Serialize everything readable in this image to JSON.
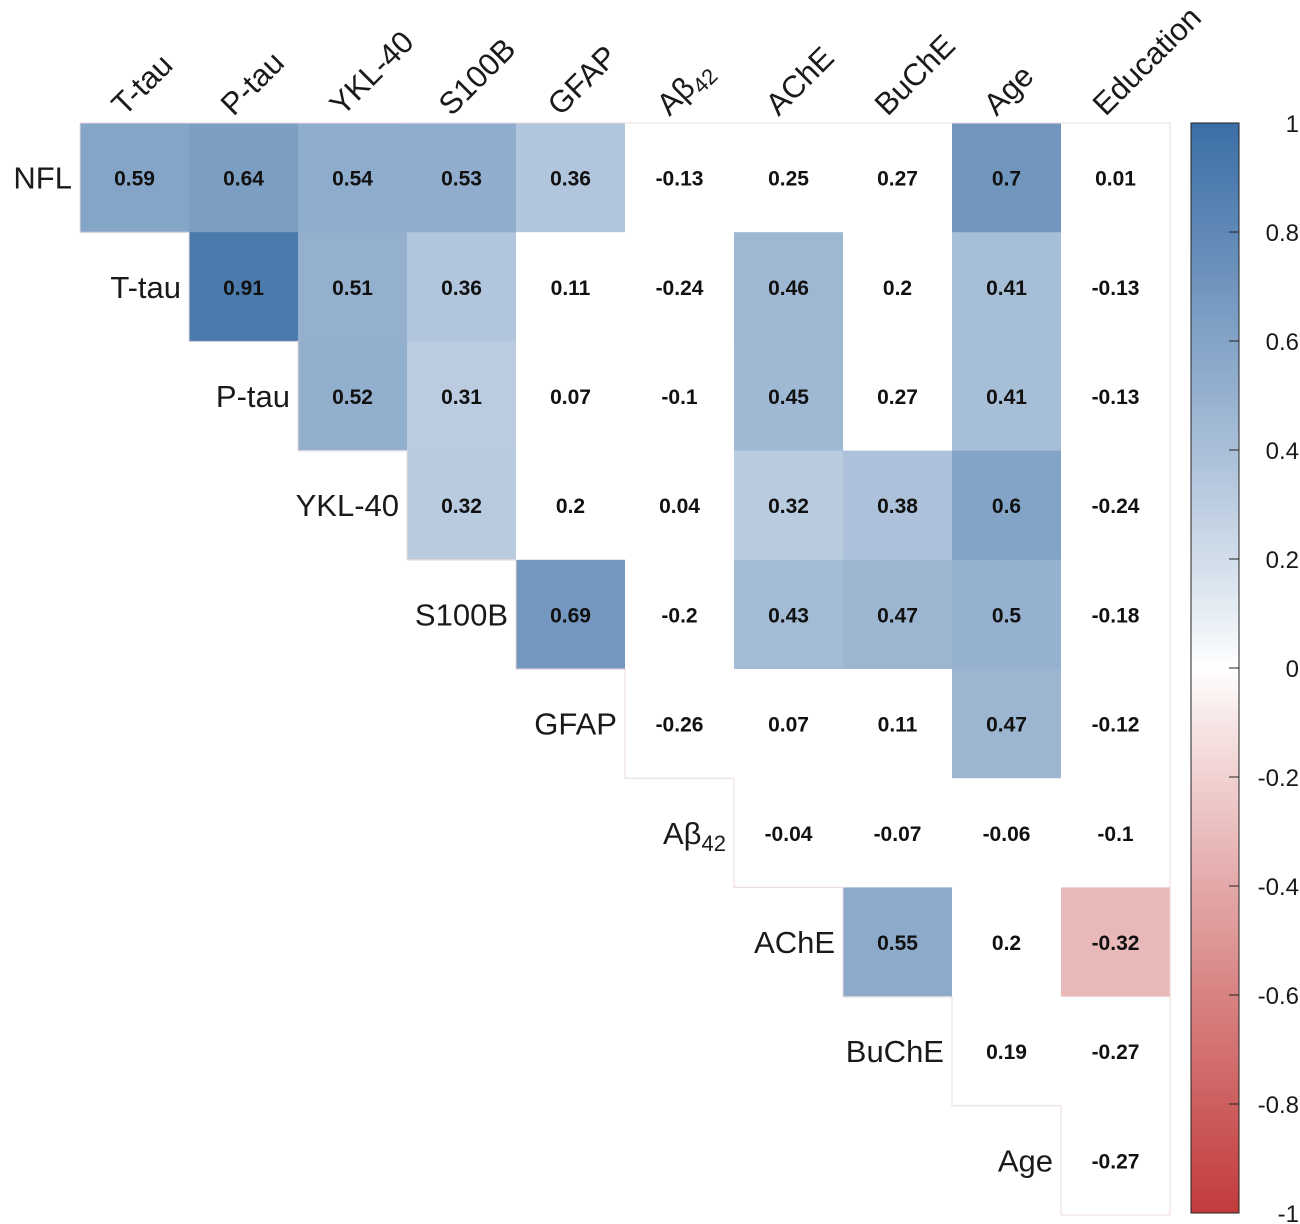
{
  "chart_data": {
    "type": "heatmap",
    "title": "",
    "columns": [
      "T-tau",
      "P-tau",
      "YKL-40",
      "S100B",
      "GFAP",
      "Aβ42",
      "AChE",
      "BuChE",
      "Age",
      "Education"
    ],
    "rows": [
      "NFL",
      "T-tau",
      "P-tau",
      "YKL-40",
      "S100B",
      "GFAP",
      "Aβ42",
      "AChE",
      "BuChE",
      "Age"
    ],
    "values": [
      [
        0.59,
        0.64,
        0.54,
        0.53,
        0.36,
        -0.13,
        0.25,
        0.27,
        0.7,
        0.01
      ],
      [
        null,
        0.91,
        0.51,
        0.36,
        0.11,
        -0.24,
        0.46,
        0.2,
        0.41,
        -0.13
      ],
      [
        null,
        null,
        0.52,
        0.31,
        0.07,
        -0.1,
        0.45,
        0.27,
        0.41,
        -0.13
      ],
      [
        null,
        null,
        null,
        0.32,
        0.2,
        0.04,
        0.32,
        0.38,
        0.6,
        -0.24
      ],
      [
        null,
        null,
        null,
        null,
        0.69,
        -0.2,
        0.43,
        0.47,
        0.5,
        -0.18
      ],
      [
        null,
        null,
        null,
        null,
        null,
        -0.26,
        0.07,
        0.11,
        0.47,
        -0.12
      ],
      [
        null,
        null,
        null,
        null,
        null,
        null,
        -0.04,
        -0.07,
        -0.06,
        -0.1
      ],
      [
        null,
        null,
        null,
        null,
        null,
        null,
        null,
        0.55,
        0.2,
        -0.32
      ],
      [
        null,
        null,
        null,
        null,
        null,
        null,
        null,
        null,
        0.19,
        -0.27
      ],
      [
        null,
        null,
        null,
        null,
        null,
        null,
        null,
        null,
        null,
        -0.27
      ]
    ],
    "value_labels": [
      [
        "0.59",
        "0.64",
        "0.54",
        "0.53",
        "0.36",
        "-0.13",
        "0.25",
        "0.27",
        "0.7",
        "0.01"
      ],
      [
        null,
        "0.91",
        "0.51",
        "0.36",
        "0.11",
        "-0.24",
        "0.46",
        "0.2",
        "0.41",
        "-0.13"
      ],
      [
        null,
        null,
        "0.52",
        "0.31",
        "0.07",
        "-0.1",
        "0.45",
        "0.27",
        "0.41",
        "-0.13"
      ],
      [
        null,
        null,
        null,
        "0.32",
        "0.2",
        "0.04",
        "0.32",
        "0.38",
        "0.6",
        "-0.24"
      ],
      [
        null,
        null,
        null,
        null,
        "0.69",
        "-0.2",
        "0.43",
        "0.47",
        "0.5",
        "-0.18"
      ],
      [
        null,
        null,
        null,
        null,
        null,
        "-0.26",
        "0.07",
        "0.11",
        "0.47",
        "-0.12"
      ],
      [
        null,
        null,
        null,
        null,
        null,
        null,
        "-0.04",
        "-0.07",
        "-0.06",
        "-0.1"
      ],
      [
        null,
        null,
        null,
        null,
        null,
        null,
        null,
        "0.55",
        "0.2",
        "-0.32"
      ],
      [
        null,
        null,
        null,
        null,
        null,
        null,
        null,
        null,
        "0.19",
        "-0.27"
      ],
      [
        null,
        null,
        null,
        null,
        null,
        null,
        null,
        null,
        null,
        "-0.27"
      ]
    ],
    "shaded_cells": [
      [
        0,
        0
      ],
      [
        0,
        1
      ],
      [
        0,
        2
      ],
      [
        0,
        3
      ],
      [
        0,
        4
      ],
      [
        0,
        8
      ],
      [
        1,
        1
      ],
      [
        1,
        2
      ],
      [
        1,
        3
      ],
      [
        1,
        6
      ],
      [
        1,
        8
      ],
      [
        2,
        2
      ],
      [
        2,
        3
      ],
      [
        2,
        6
      ],
      [
        2,
        8
      ],
      [
        3,
        3
      ],
      [
        3,
        6
      ],
      [
        3,
        7
      ],
      [
        3,
        8
      ],
      [
        4,
        4
      ],
      [
        4,
        6
      ],
      [
        4,
        7
      ],
      [
        4,
        8
      ],
      [
        5,
        8
      ],
      [
        7,
        7
      ],
      [
        7,
        9
      ]
    ],
    "colorbar": {
      "range": [
        -1,
        1
      ],
      "ticks": [
        1,
        0.8,
        0.6,
        0.4,
        0.2,
        0,
        -0.2,
        -0.4,
        -0.6,
        -0.8,
        -1
      ],
      "tick_labels": [
        "1",
        "0.8",
        "0.6",
        "0.4",
        "0.2",
        "0",
        "-0.2",
        "-0.4",
        "-0.6",
        "-0.8",
        "-1"
      ],
      "color_positive": "#3b6ea6",
      "color_zero": "#ffffff",
      "color_negative": "#c23b3b"
    },
    "xlabel": "",
    "ylabel": ""
  }
}
